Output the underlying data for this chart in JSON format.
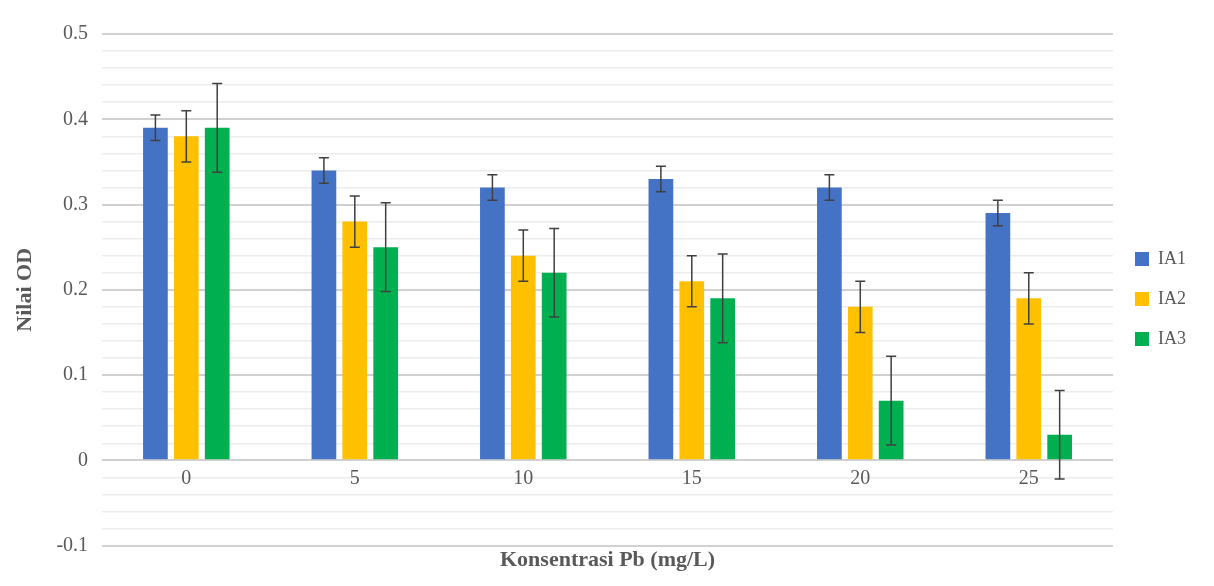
{
  "chart_data": {
    "type": "bar",
    "xlabel": "Konsentrasi Pb (mg/L)",
    "ylabel": "Nilai OD",
    "categories": [
      "0",
      "5",
      "10",
      "15",
      "20",
      "25"
    ],
    "series": [
      {
        "name": "IA1",
        "color": "#4472c4",
        "values": [
          0.39,
          0.34,
          0.32,
          0.33,
          0.32,
          0.29
        ],
        "errors": [
          0.015,
          0.015,
          0.015,
          0.015,
          0.015,
          0.015
        ]
      },
      {
        "name": "IA2",
        "color": "#ffc000",
        "values": [
          0.38,
          0.28,
          0.24,
          0.21,
          0.18,
          0.19
        ],
        "errors": [
          0.03,
          0.03,
          0.03,
          0.03,
          0.03,
          0.03
        ]
      },
      {
        "name": "IA3",
        "color": "#00b050",
        "values": [
          0.39,
          0.25,
          0.22,
          0.19,
          0.07,
          0.03
        ],
        "errors": [
          0.052,
          0.052,
          0.052,
          0.052,
          0.052,
          0.052
        ]
      }
    ],
    "ylim": [
      -0.1,
      0.5
    ],
    "yticks": [
      -0.1,
      {
        "value": -0.08,
        "label": null
      },
      {
        "value": -0.06,
        "label": null
      },
      {
        "value": -0.04,
        "label": null
      },
      {
        "value": -0.02,
        "label": null
      },
      0,
      {
        "value": 0.02,
        "label": null
      },
      {
        "value": 0.04,
        "label": null
      },
      {
        "value": 0.06,
        "label": null
      },
      {
        "value": 0.08,
        "label": null
      },
      0.1,
      {
        "value": 0.12,
        "label": null
      },
      {
        "value": 0.14,
        "label": null
      },
      {
        "value": 0.16,
        "label": null
      },
      {
        "value": 0.18,
        "label": null
      },
      0.2,
      {
        "value": 0.22,
        "label": null
      },
      {
        "value": 0.24,
        "label": null
      },
      {
        "value": 0.26,
        "label": null
      },
      {
        "value": 0.28,
        "label": null
      },
      0.3,
      {
        "value": 0.32,
        "label": null
      },
      {
        "value": 0.34,
        "label": null
      },
      {
        "value": 0.36,
        "label": null
      },
      {
        "value": 0.38,
        "label": null
      },
      0.4,
      {
        "value": 0.42,
        "label": null
      },
      {
        "value": 0.44,
        "label": null
      },
      {
        "value": 0.46,
        "label": null
      },
      {
        "value": 0.48,
        "label": null
      },
      0.5
    ],
    "grid": "y",
    "legend": "right"
  }
}
